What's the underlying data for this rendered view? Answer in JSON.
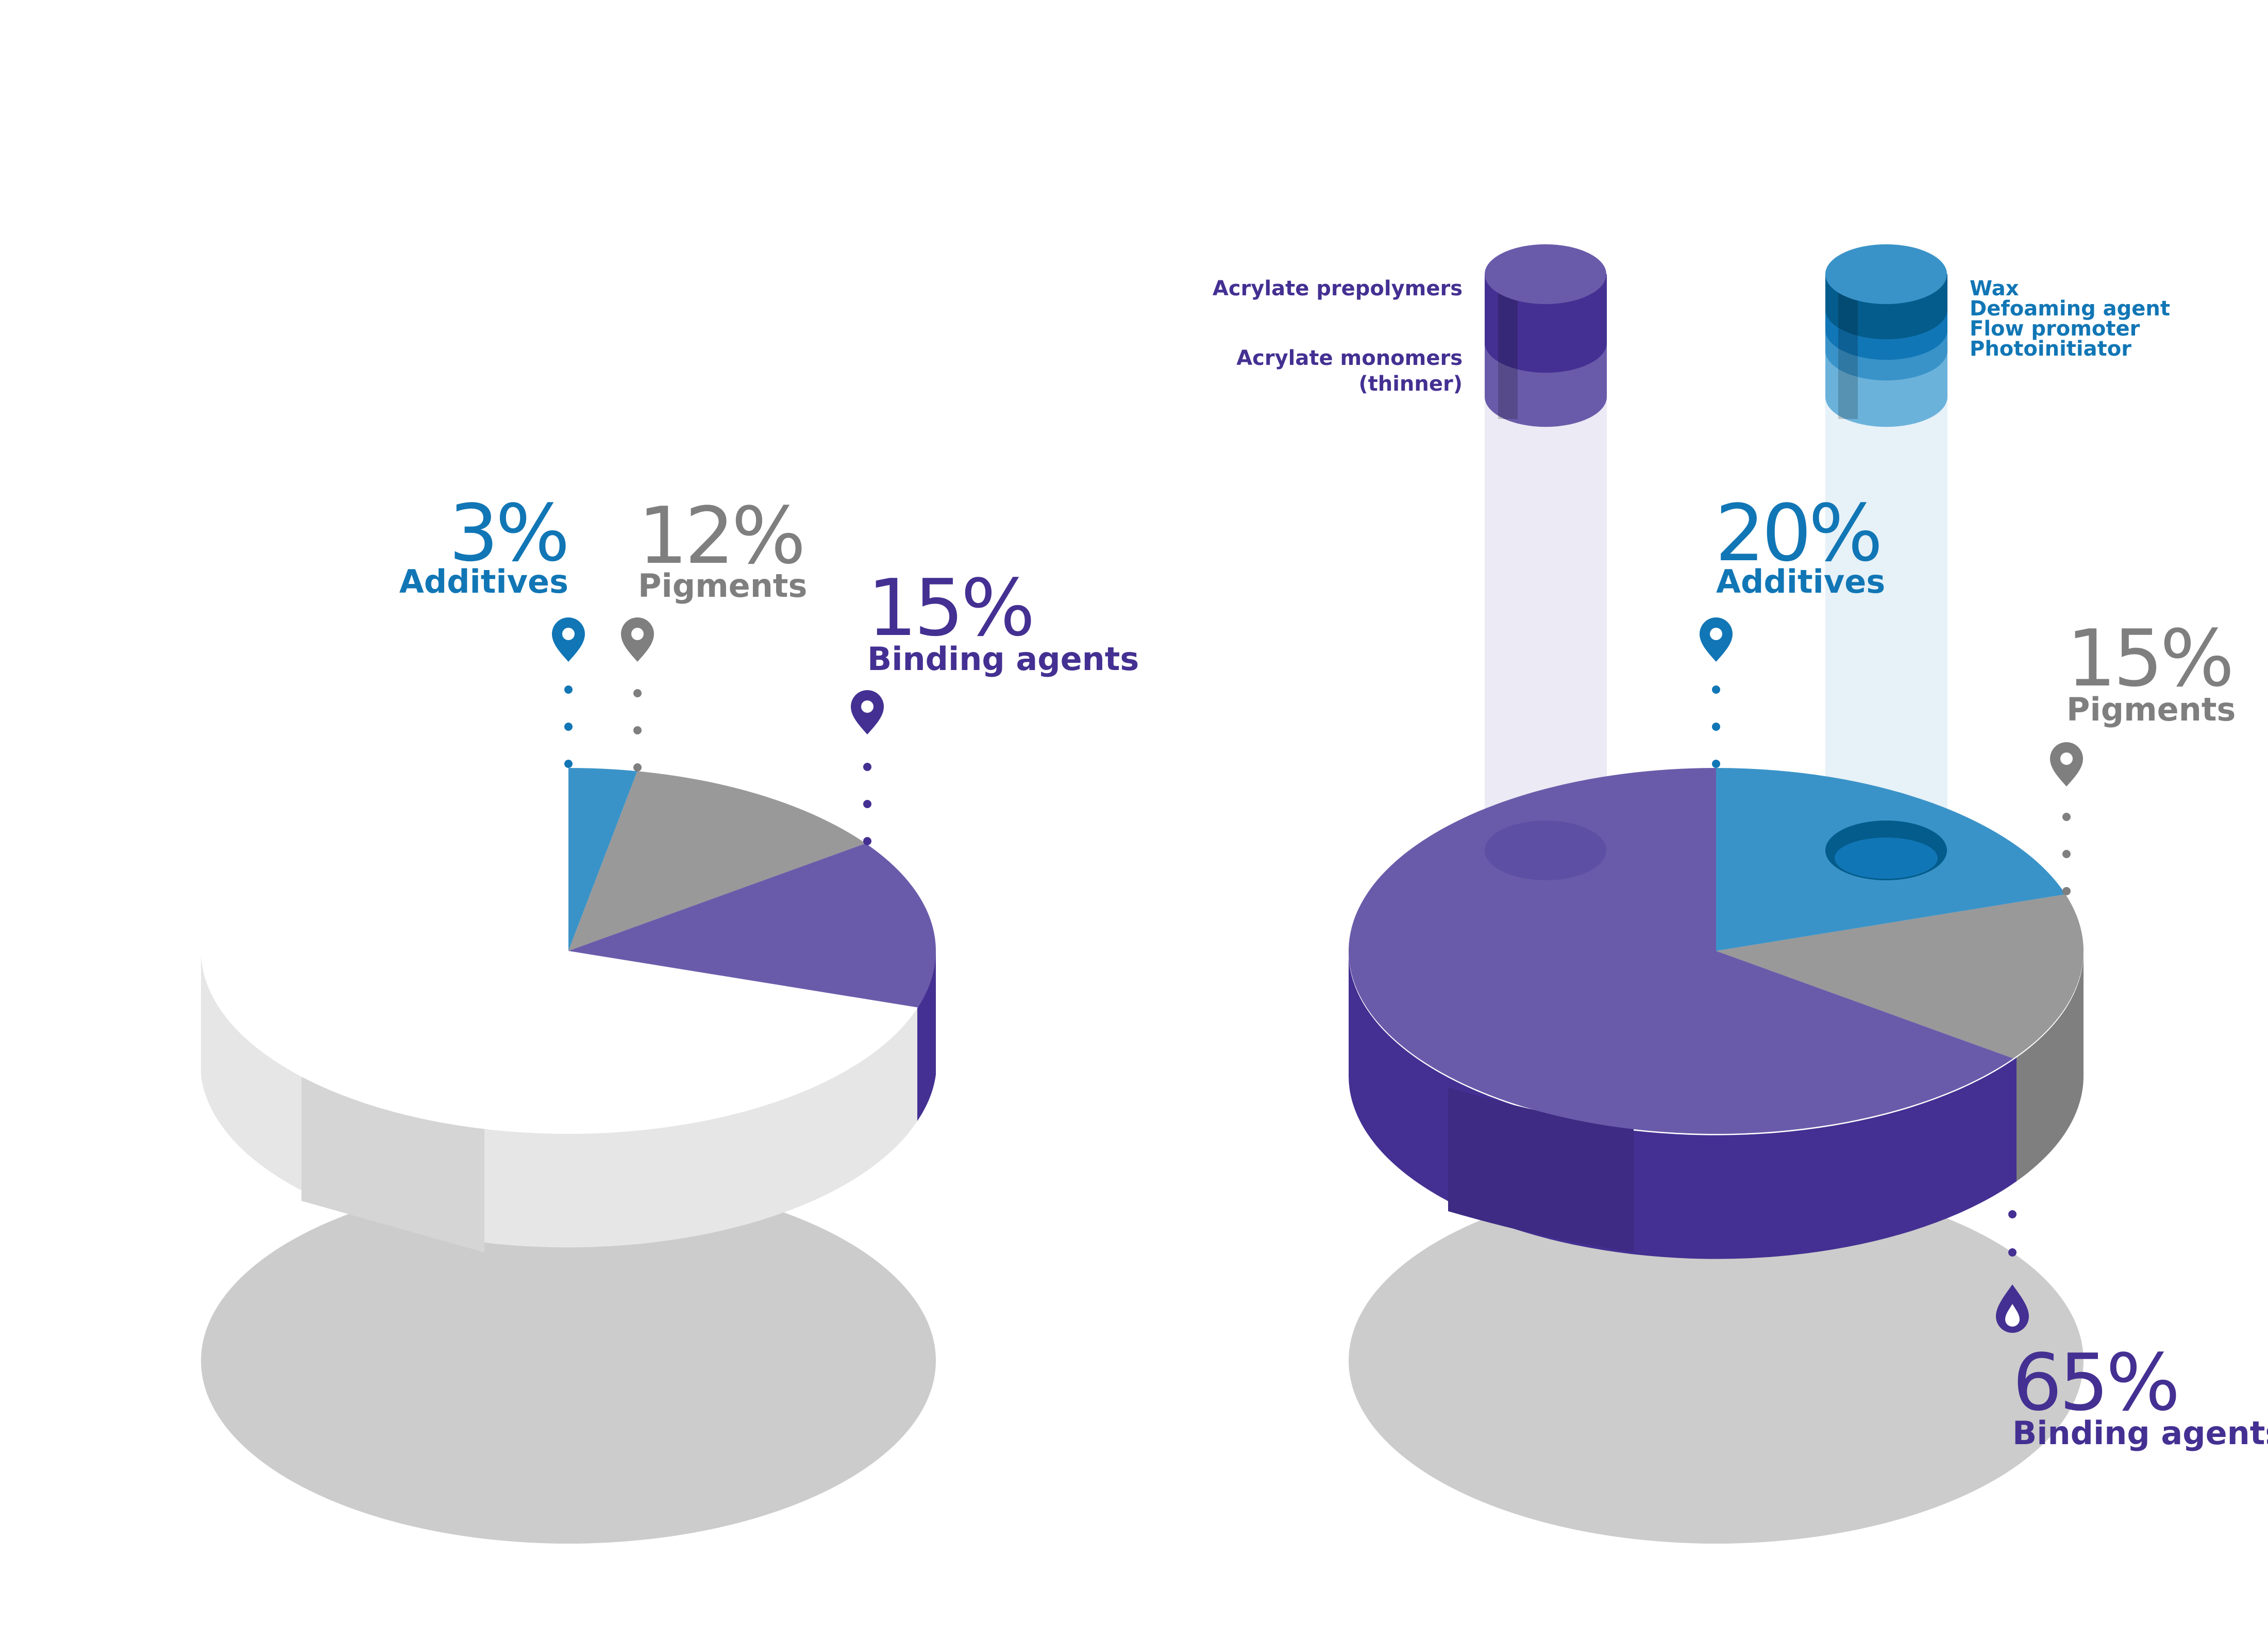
{
  "chart_data": [
    {
      "type": "pie",
      "slices": [
        {
          "label": "Additives",
          "value": 3,
          "value_text": "3%",
          "color": "#3A93C8"
        },
        {
          "label": "Pigments",
          "value": 12,
          "value_text": "12%",
          "color": "#999999"
        },
        {
          "label": "Binding agents",
          "value": 15,
          "value_text": "15%",
          "color": "#6A5BAA"
        },
        {
          "label": "",
          "value": 70,
          "value_text": "",
          "color": "#FFFFFF"
        }
      ]
    },
    {
      "type": "pie",
      "slices": [
        {
          "label": "Additives",
          "value": 20,
          "value_text": "20%",
          "color": "#3A93C8"
        },
        {
          "label": "Pigments",
          "value": 15,
          "value_text": "15%",
          "color": "#999999"
        },
        {
          "label": "Binding agents",
          "value": 65,
          "value_text": "65%",
          "color": "#6A5BAA"
        }
      ],
      "binding_components": [
        "Acrylate prepolymers",
        "Acrylate monomers",
        "(thinner)"
      ],
      "additive_components": [
        "Wax",
        "Defoaming agent",
        "Flow promoter",
        "Photoinitiator"
      ]
    }
  ],
  "colors": {
    "additives": "#3A93C8",
    "additives_text": "#1176B5",
    "pigments": "#999999",
    "pigments_text": "#7F7F7F",
    "binding": "#6A5BAA",
    "binding_text": "#443092",
    "shadow": "#CCCCCC"
  },
  "icons": [
    "location-pin-icon",
    "drop-icon"
  ]
}
